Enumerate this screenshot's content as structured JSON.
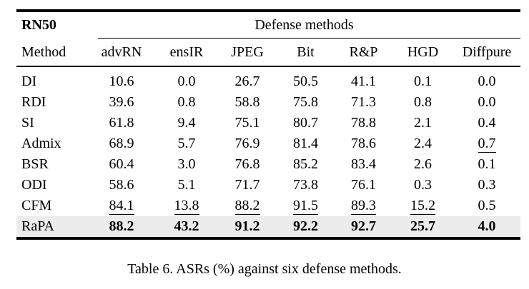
{
  "table": {
    "group_col_label": "RN50",
    "group_span_label": "Defense methods",
    "columns": [
      "Method",
      "advRN",
      "ensIR",
      "JPEG",
      "Bit",
      "R&P",
      "HGD",
      "Diffpure"
    ],
    "rows": [
      {
        "method": "DI",
        "values": [
          "10.6",
          "0.0",
          "26.7",
          "50.5",
          "41.1",
          "0.1",
          "0.0"
        ],
        "emphasis": [
          "",
          "",
          "",
          "",
          "",
          "",
          ""
        ],
        "highlight": false
      },
      {
        "method": "RDI",
        "values": [
          "39.6",
          "0.8",
          "58.8",
          "75.8",
          "71.3",
          "0.8",
          "0.0"
        ],
        "emphasis": [
          "",
          "",
          "",
          "",
          "",
          "",
          ""
        ],
        "highlight": false
      },
      {
        "method": "SI",
        "values": [
          "61.8",
          "9.4",
          "75.1",
          "80.7",
          "78.8",
          "2.1",
          "0.4"
        ],
        "emphasis": [
          "",
          "",
          "",
          "",
          "",
          "",
          ""
        ],
        "highlight": false
      },
      {
        "method": "Admix",
        "values": [
          "68.9",
          "5.7",
          "76.9",
          "81.4",
          "78.6",
          "2.4",
          "0.7"
        ],
        "emphasis": [
          "",
          "",
          "",
          "",
          "",
          "",
          "underline"
        ],
        "highlight": false
      },
      {
        "method": "BSR",
        "values": [
          "60.4",
          "3.0",
          "76.8",
          "85.2",
          "83.4",
          "2.6",
          "0.1"
        ],
        "emphasis": [
          "",
          "",
          "",
          "",
          "",
          "",
          ""
        ],
        "highlight": false
      },
      {
        "method": "ODI",
        "values": [
          "58.6",
          "5.1",
          "71.7",
          "73.8",
          "76.1",
          "0.3",
          "0.3"
        ],
        "emphasis": [
          "",
          "",
          "",
          "",
          "",
          "",
          ""
        ],
        "highlight": false
      },
      {
        "method": "CFM",
        "values": [
          "84.1",
          "13.8",
          "88.2",
          "91.5",
          "89.3",
          "15.2",
          "0.5"
        ],
        "emphasis": [
          "underline",
          "underline",
          "underline",
          "underline",
          "underline",
          "underline",
          ""
        ],
        "highlight": false
      },
      {
        "method": "RaPA",
        "values": [
          "88.2",
          "43.2",
          "91.2",
          "92.2",
          "92.7",
          "25.7",
          "4.0"
        ],
        "emphasis": [
          "bold",
          "bold",
          "bold",
          "bold",
          "bold",
          "bold",
          "bold"
        ],
        "highlight": true
      }
    ],
    "highlight_color": "#ececec",
    "text_color": "#000000",
    "rule_color": "#000000"
  },
  "caption": "Table 6. ASRs (%) against six defense methods.",
  "chart_data": {
    "type": "table",
    "title": "Table 6. ASRs (%) against six defense methods.",
    "row_group_label": "RN50",
    "column_group_label": "Defense methods",
    "columns": [
      "Method",
      "advRN",
      "ensIR",
      "JPEG",
      "Bit",
      "R&P",
      "HGD",
      "Diffpure"
    ],
    "rows": [
      [
        "DI",
        10.6,
        0.0,
        26.7,
        50.5,
        41.1,
        0.1,
        0.0
      ],
      [
        "RDI",
        39.6,
        0.8,
        58.8,
        75.8,
        71.3,
        0.8,
        0.0
      ],
      [
        "SI",
        61.8,
        9.4,
        75.1,
        80.7,
        78.8,
        2.1,
        0.4
      ],
      [
        "Admix",
        68.9,
        5.7,
        76.9,
        81.4,
        78.6,
        2.4,
        0.7
      ],
      [
        "BSR",
        60.4,
        3.0,
        76.8,
        85.2,
        83.4,
        2.6,
        0.1
      ],
      [
        "ODI",
        58.6,
        5.1,
        71.7,
        73.8,
        76.1,
        0.3,
        0.3
      ],
      [
        "CFM",
        84.1,
        13.8,
        88.2,
        91.5,
        89.3,
        15.2,
        0.5
      ],
      [
        "RaPA",
        88.2,
        43.2,
        91.2,
        92.2,
        92.7,
        25.7,
        4.0
      ]
    ],
    "bold_row": "RaPA",
    "highlighted_row": "RaPA",
    "underlined_cells": [
      [
        "Admix",
        "Diffpure"
      ],
      [
        "CFM",
        "advRN"
      ],
      [
        "CFM",
        "ensIR"
      ],
      [
        "CFM",
        "JPEG"
      ],
      [
        "CFM",
        "Bit"
      ],
      [
        "CFM",
        "R&P"
      ],
      [
        "CFM",
        "HGD"
      ]
    ]
  }
}
